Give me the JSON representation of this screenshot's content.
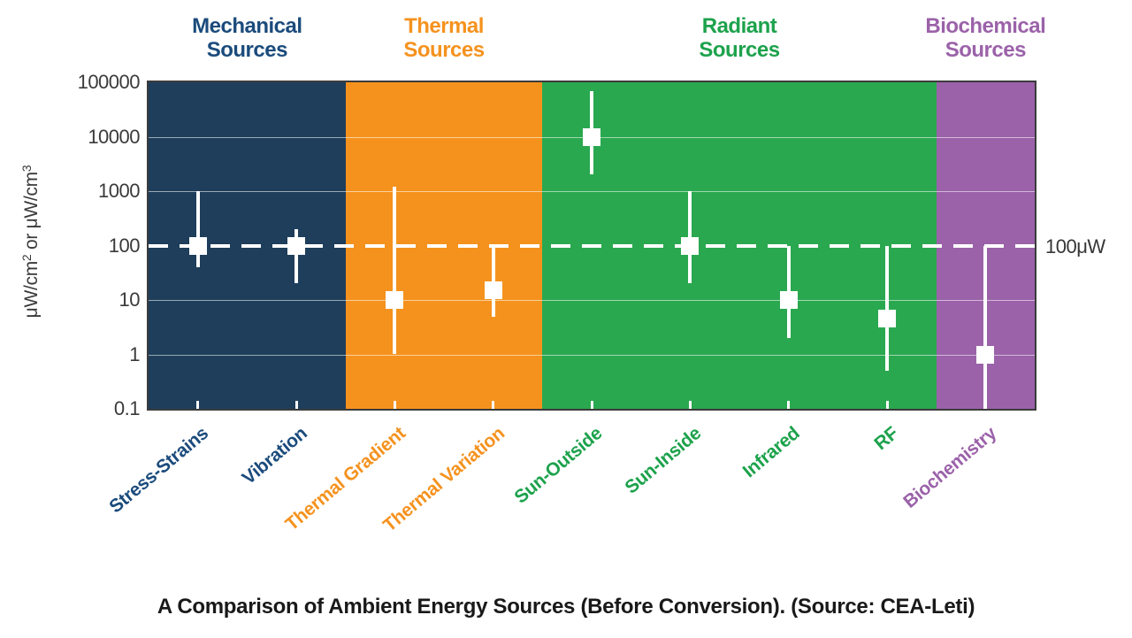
{
  "chart_data": {
    "type": "scatter",
    "subtype": "range-markers-on-log-scale",
    "yscale": "log",
    "ylim": [
      0.1,
      100000
    ],
    "yticks": [
      "100000",
      "10000",
      "1000",
      "100",
      "10",
      "1",
      "0.1"
    ],
    "ylabel_text": "μW/cm2 or μW/cm3",
    "ylabel": {
      "seg1": "μW/cm",
      "sup1": "2",
      "seg2": " or μW/cm",
      "sup2": "3"
    },
    "reference_line": {
      "value": 100,
      "label": "100μW",
      "style": "dashed-white"
    },
    "caption": "A Comparison of Ambient Energy Sources (Before Conversion). (Source: CEA-Leti)",
    "grid": "on",
    "groups": [
      {
        "id": "mechanical",
        "line1": "Mechanical",
        "line2": "Sources",
        "fill": "#1e3e5c",
        "text_color": "#1b4b7c"
      },
      {
        "id": "thermal",
        "line1": "Thermal",
        "line2": "Sources",
        "fill": "#f5921e",
        "text_color": "#f5921e"
      },
      {
        "id": "radiant",
        "line1": "Radiant",
        "line2": "Sources",
        "fill": "#2aa84f",
        "text_color": "#1da24c"
      },
      {
        "id": "biochemical",
        "line1": "Biochemical",
        "line2": "Sources",
        "fill": "#9b62a9",
        "text_color": "#9b62a9"
      }
    ],
    "points": [
      {
        "label": "Stress-Strains",
        "group": "mechanical",
        "value": 100,
        "low": 40,
        "high": 1000
      },
      {
        "label": "Vibration",
        "group": "mechanical",
        "value": 100,
        "low": 20,
        "high": 200
      },
      {
        "label": "Thermal Gradient",
        "group": "thermal",
        "value": 10,
        "low": 1,
        "high": 1200
      },
      {
        "label": "Thermal Variation",
        "group": "thermal",
        "value": 15,
        "low": 5,
        "high": 100
      },
      {
        "label": "Sun-Outside",
        "group": "radiant",
        "value": 10000,
        "low": 2000,
        "high": 70000
      },
      {
        "label": "Sun-Inside",
        "group": "radiant",
        "value": 100,
        "low": 20,
        "high": 1000
      },
      {
        "label": "Infrared",
        "group": "radiant",
        "value": 10,
        "low": 2,
        "high": 100
      },
      {
        "label": "RF",
        "group": "radiant",
        "value": 4.5,
        "low": 0.5,
        "high": 100
      },
      {
        "label": "Biochemistry",
        "group": "biochemical",
        "value": 1,
        "low": 0.1,
        "high": 100
      }
    ],
    "colors": {
      "marker": "#ffffff",
      "gridline": "#ffffff",
      "axis_text": "#3a3a3a",
      "plot_border": "#3b3b3b",
      "caption_text": "#191919",
      "background": "#ffffff"
    }
  }
}
